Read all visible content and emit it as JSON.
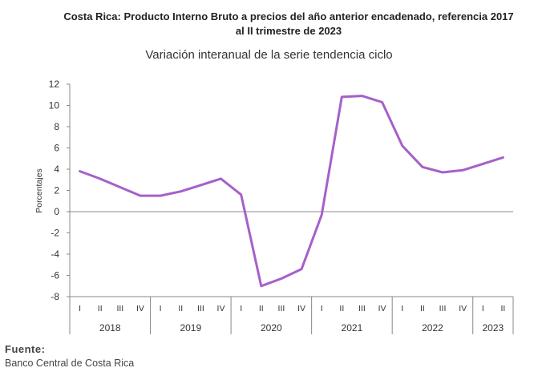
{
  "chart_data": {
    "type": "line",
    "title": "Costa Rica: Producto Interno Bruto a precios del año anterior encadenado, referencia 2017",
    "title_line2": "al II trimestre de 2023",
    "subtitle": "Variación interanual de la serie tendencia ciclo",
    "ylabel": "Porcentajes",
    "ylim": [
      -8,
      12
    ],
    "yticks": [
      "12",
      "10",
      "8",
      "6",
      "4",
      "2",
      "0",
      "-2",
      "-4",
      "-6",
      "-8"
    ],
    "ytick_values": [
      12,
      10,
      8,
      6,
      4,
      2,
      0,
      -2,
      -4,
      -6,
      -8
    ],
    "quarters": [
      "I",
      "II",
      "III",
      "IV",
      "I",
      "II",
      "III",
      "IV",
      "I",
      "II",
      "III",
      "IV",
      "I",
      "II",
      "III",
      "IV",
      "I",
      "II",
      "III",
      "IV",
      "I",
      "II"
    ],
    "years": [
      {
        "label": "2018",
        "count": 4
      },
      {
        "label": "2019",
        "count": 4
      },
      {
        "label": "2020",
        "count": 4
      },
      {
        "label": "2021",
        "count": 4
      },
      {
        "label": "2022",
        "count": 4
      },
      {
        "label": "2023",
        "count": 2
      }
    ],
    "series": [
      {
        "values": [
          3.8,
          3.1,
          2.3,
          1.5,
          1.5,
          1.9,
          2.5,
          3.1,
          1.6,
          -7.0,
          -6.3,
          -5.4,
          -0.3,
          10.8,
          10.9,
          10.3,
          6.2,
          4.2,
          3.7,
          3.9,
          4.5,
          5.1
        ],
        "color": "#a660c8"
      }
    ],
    "grid": false,
    "zero_line": true
  },
  "source": {
    "title": "Fuente:",
    "text": "Banco Central de Costa Rica"
  }
}
